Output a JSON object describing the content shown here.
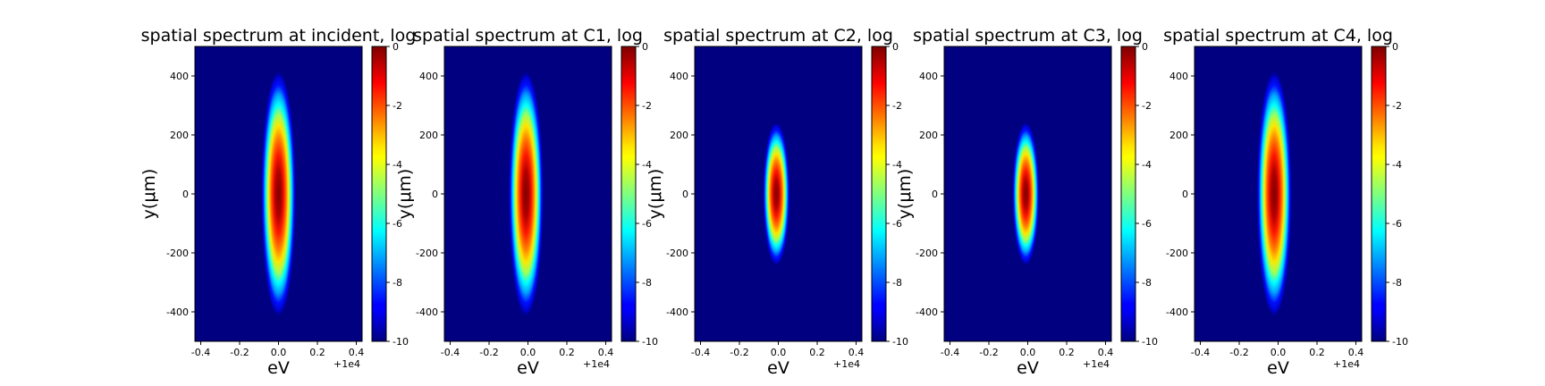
{
  "chart_data": [
    {
      "type": "heatmap",
      "title": "spatial spectrum at incident, log",
      "xlabel": "eV",
      "ylabel": "y(μm)",
      "x_offset_label": "+1e4",
      "xlim": [
        -0.43,
        0.43
      ],
      "ylim": [
        -500,
        500
      ],
      "x_ticks": [
        "-0.4",
        "-0.2",
        "0.0",
        "0.2",
        "0.4"
      ],
      "y_ticks": [
        "-400",
        "-200",
        "0",
        "200",
        "400"
      ],
      "colorbar": {
        "range": [
          -10,
          0
        ],
        "ticks": [
          "0",
          "-2",
          "-4",
          "-6",
          "-8",
          "-10"
        ],
        "colormap": "jet"
      },
      "spot": {
        "center_x": 0.0,
        "center_y": 0,
        "half_width_x": 0.09,
        "half_height_y": 420
      }
    },
    {
      "type": "heatmap",
      "title": "spatial spectrum at C1, log",
      "xlabel": "eV",
      "ylabel": "y(μm)",
      "x_offset_label": "+1e4",
      "xlim": [
        -0.43,
        0.43
      ],
      "ylim": [
        -500,
        500
      ],
      "x_ticks": [
        "-0.4",
        "-0.2",
        "0.0",
        "0.2",
        "0.4"
      ],
      "y_ticks": [
        "-400",
        "-200",
        "0",
        "200",
        "400"
      ],
      "colorbar": {
        "range": [
          -10,
          0
        ],
        "ticks": [
          "0",
          "-2",
          "-4",
          "-6",
          "-8",
          "-10"
        ],
        "colormap": "jet"
      },
      "spot": {
        "center_x": -0.01,
        "center_y": 0,
        "half_width_x": 0.09,
        "half_height_y": 420
      }
    },
    {
      "type": "heatmap",
      "title": "spatial spectrum at C2, log",
      "xlabel": "eV",
      "ylabel": "y(μm)",
      "x_offset_label": "+1e4",
      "xlim": [
        -0.43,
        0.43
      ],
      "ylim": [
        -500,
        500
      ],
      "x_ticks": [
        "-0.4",
        "-0.2",
        "0.0",
        "0.2",
        "0.4"
      ],
      "y_ticks": [
        "-400",
        "-200",
        "0",
        "200",
        "400"
      ],
      "colorbar": {
        "range": [
          -10,
          0
        ],
        "ticks": [
          "0",
          "-2",
          "-4",
          "-6",
          "-8",
          "-10"
        ],
        "colormap": "jet"
      },
      "spot": {
        "center_x": -0.01,
        "center_y": 0,
        "half_width_x": 0.07,
        "half_height_y": 245
      }
    },
    {
      "type": "heatmap",
      "title": "spatial spectrum at C3, log",
      "xlabel": "eV",
      "ylabel": "y(μm)",
      "x_offset_label": "+1e4",
      "xlim": [
        -0.43,
        0.43
      ],
      "ylim": [
        -500,
        500
      ],
      "x_ticks": [
        "-0.4",
        "-0.2",
        "0.0",
        "0.2",
        "0.4"
      ],
      "y_ticks": [
        "-400",
        "-200",
        "0",
        "200",
        "400"
      ],
      "colorbar": {
        "range": [
          -10,
          0
        ],
        "ticks": [
          "0",
          "-2",
          "-4",
          "-6",
          "-8",
          "-10"
        ],
        "colormap": "jet"
      },
      "spot": {
        "center_x": -0.01,
        "center_y": 0,
        "half_width_x": 0.07,
        "half_height_y": 245
      }
    },
    {
      "type": "heatmap",
      "title": "spatial spectrum at C4, log",
      "xlabel": "eV",
      "ylabel": "",
      "x_offset_label": "+1e4",
      "xlim": [
        -0.43,
        0.43
      ],
      "ylim": [
        -500,
        500
      ],
      "x_ticks": [
        "-0.4",
        "-0.2",
        "0.0",
        "0.2",
        "0.4"
      ],
      "y_ticks": [
        "-400",
        "-200",
        "0",
        "200",
        "400"
      ],
      "colorbar": {
        "range": [
          -10,
          0
        ],
        "ticks": [
          "0",
          "-2",
          "-4",
          "-6",
          "-8",
          "-10"
        ],
        "colormap": "jet"
      },
      "spot": {
        "center_x": -0.02,
        "center_y": 0,
        "half_width_x": 0.09,
        "half_height_y": 420
      }
    }
  ]
}
